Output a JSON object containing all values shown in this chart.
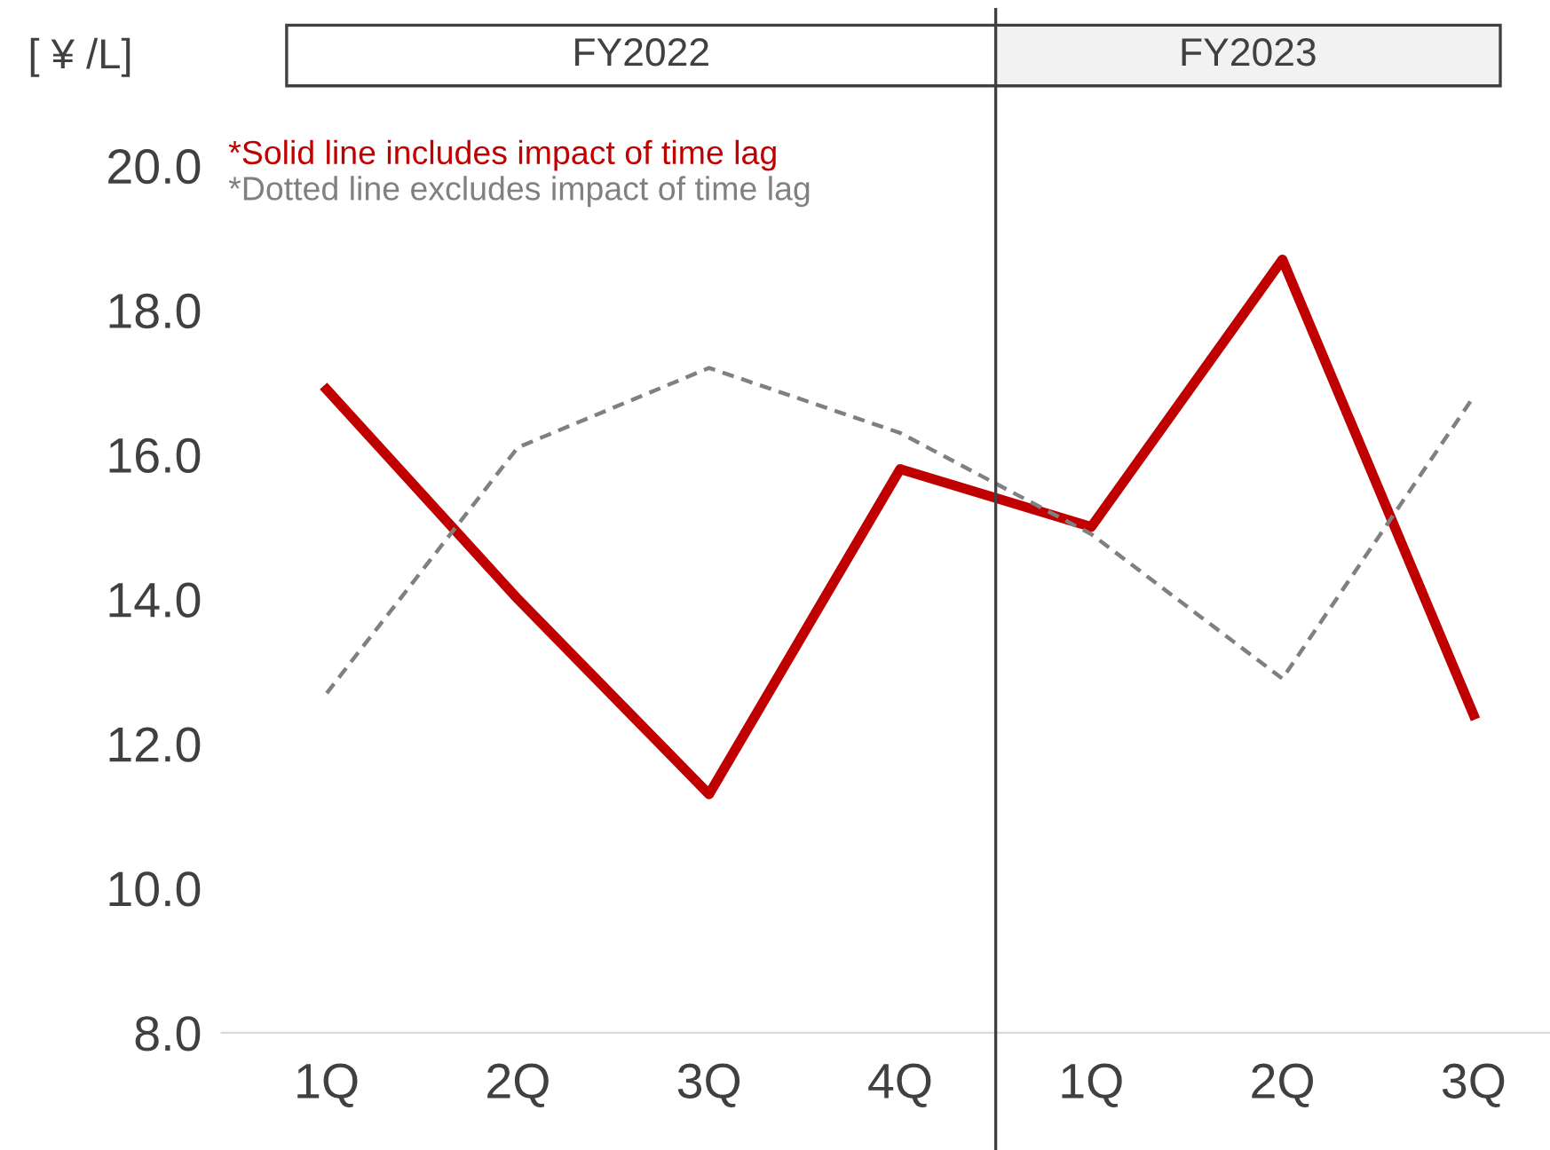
{
  "chart_data": {
    "type": "line",
    "ylabel": "[ ¥ /L]",
    "categories": [
      "1Q",
      "2Q",
      "3Q",
      "4Q",
      "1Q",
      "2Q",
      "3Q"
    ],
    "series": [
      {
        "name": "*Solid line includes impact of time lag",
        "color": "#c00000",
        "line_style": "solid",
        "values": [
          16.9,
          14.0,
          11.3,
          15.8,
          15.0,
          18.7,
          12.4
        ]
      },
      {
        "name": "*Dotted line excludes impact of time lag",
        "color": "#808080",
        "line_style": "dashed",
        "values": [
          12.7,
          16.1,
          17.2,
          16.3,
          14.9,
          12.9,
          16.8
        ]
      }
    ],
    "ylim": [
      8.0,
      20.0
    ],
    "yticks": [
      {
        "value": 8,
        "label": "8.0"
      },
      {
        "value": 10,
        "label": "10.0"
      },
      {
        "value": 12,
        "label": "12.0"
      },
      {
        "value": 14,
        "label": "14.0"
      },
      {
        "value": 16,
        "label": "16.0"
      },
      {
        "value": 18,
        "label": "18.0"
      },
      {
        "value": 20,
        "label": "20.0"
      }
    ],
    "annotations": [
      "FY2022",
      "FY2023"
    ],
    "legend": "top left",
    "grid": false,
    "marker": "none"
  }
}
